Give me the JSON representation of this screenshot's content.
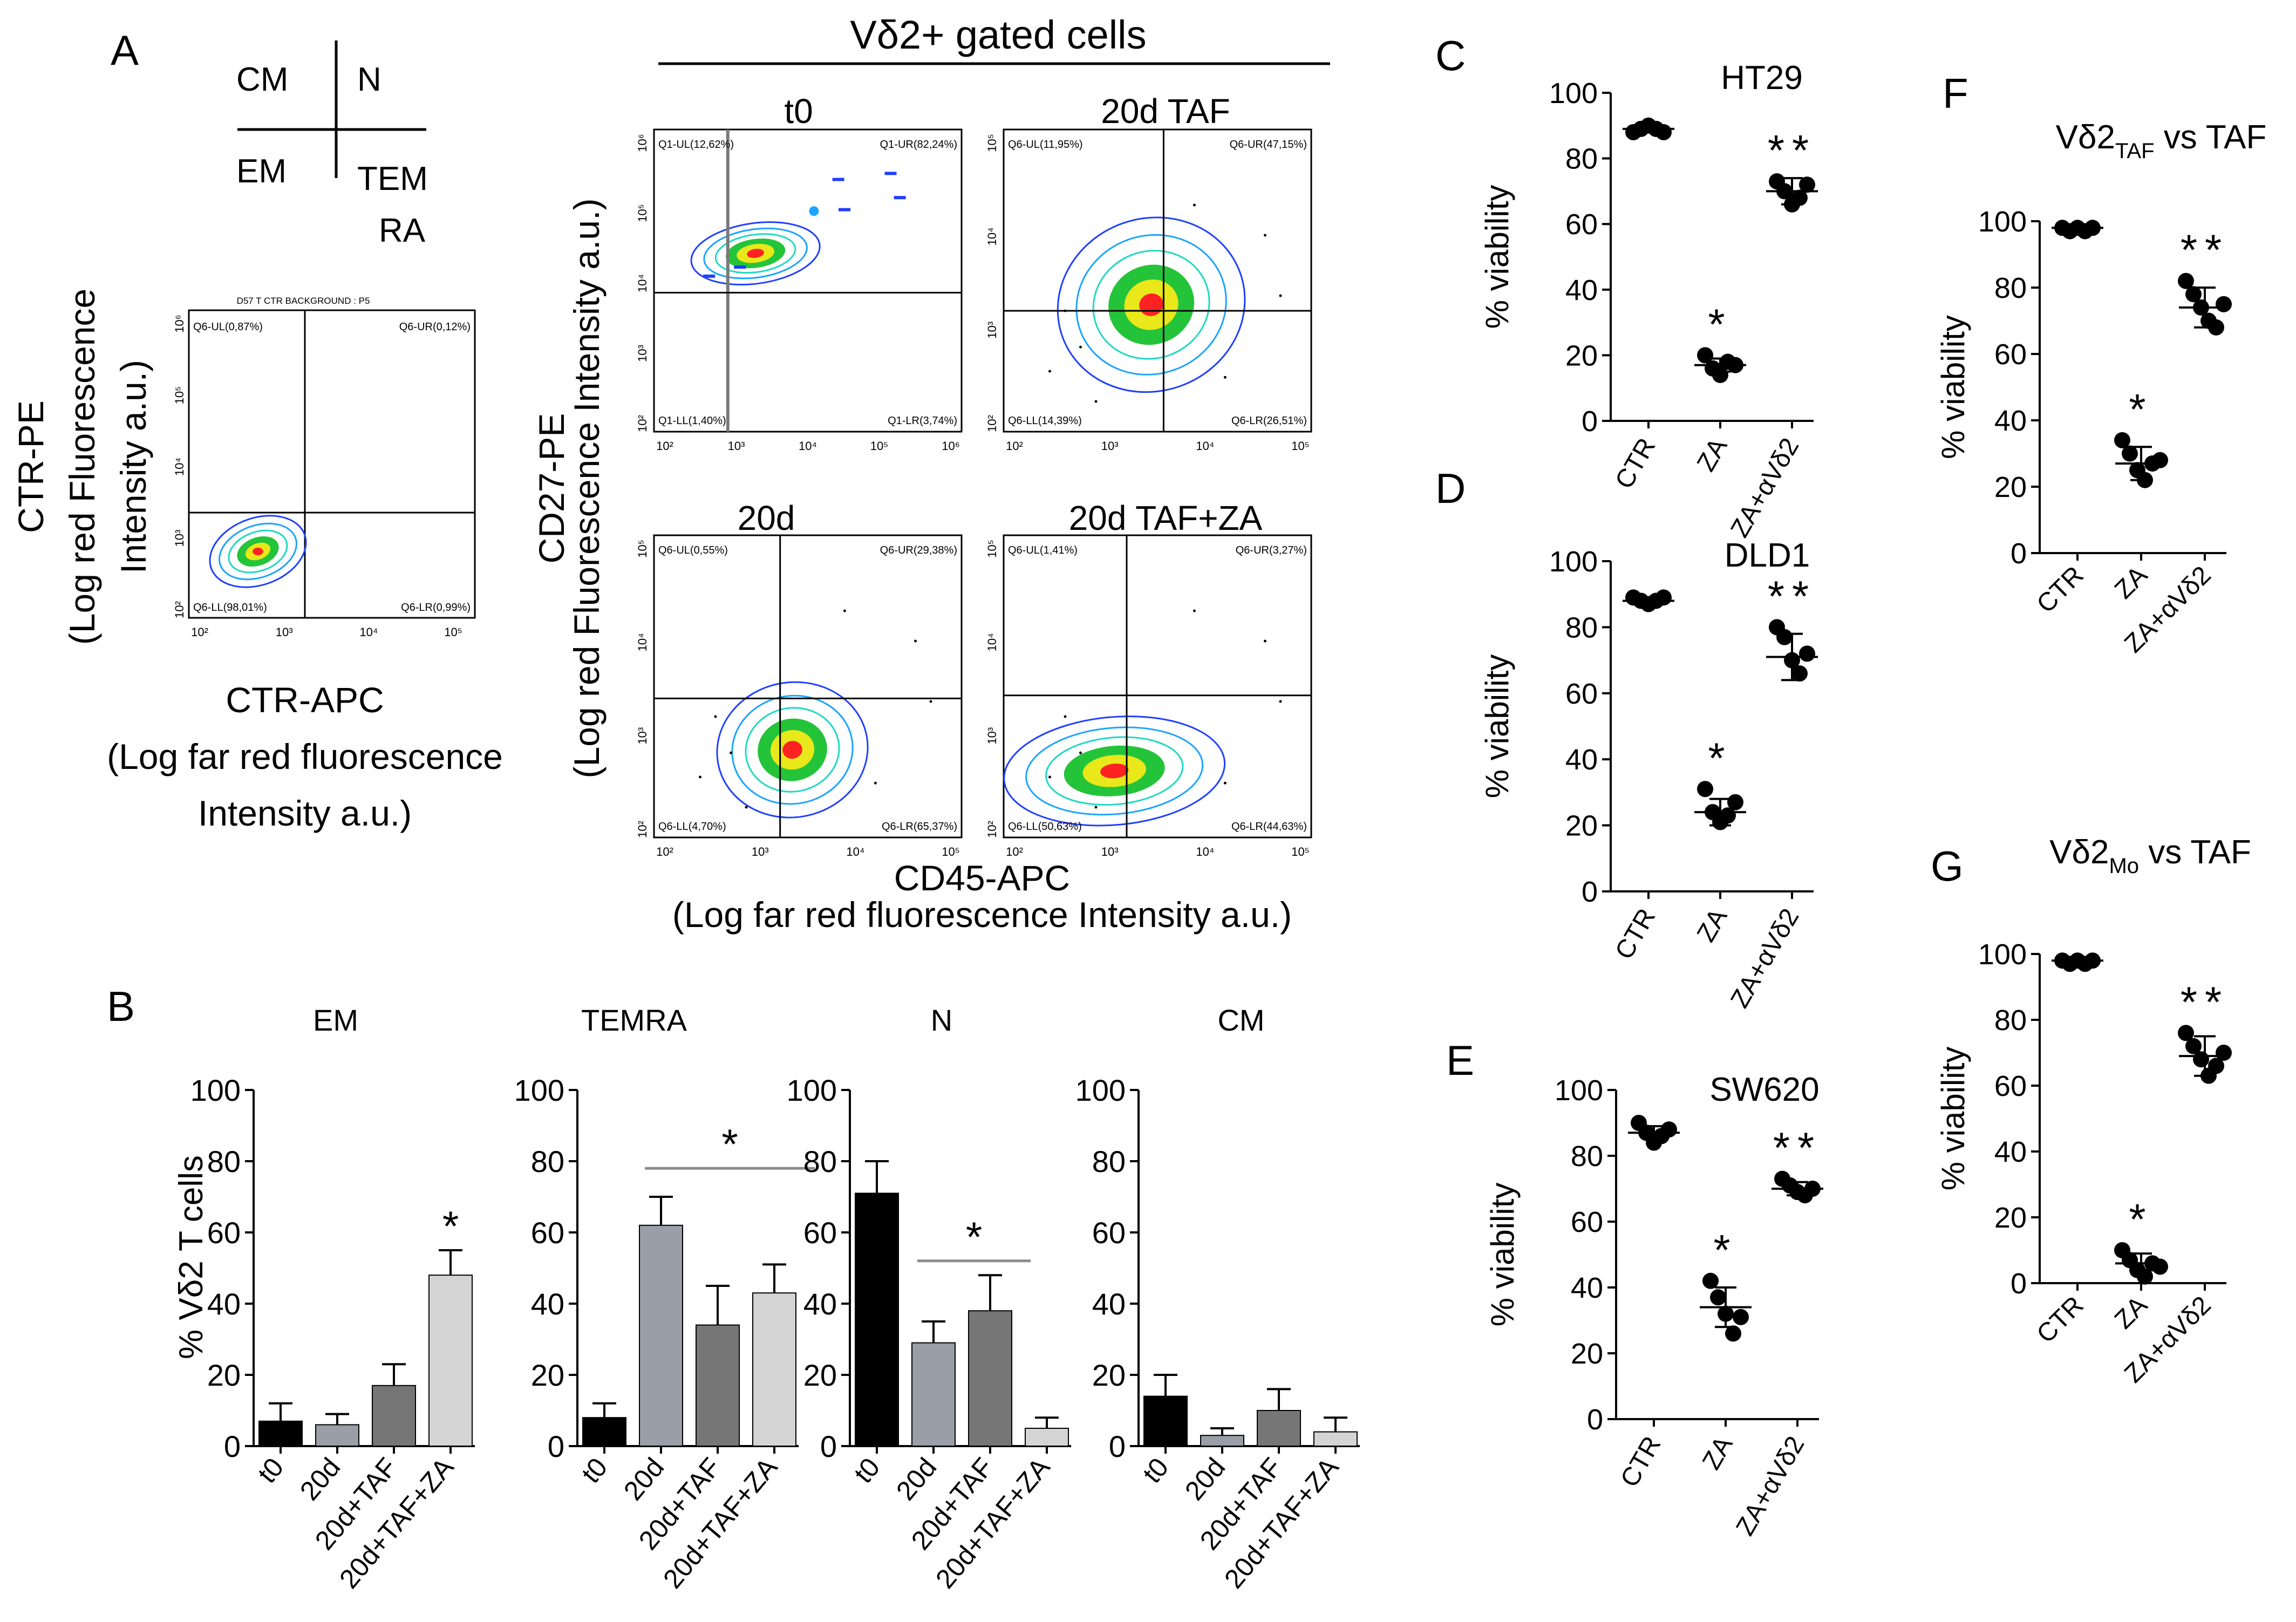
{
  "colors": {
    "ink": "#000000",
    "bar_black": "#000000",
    "bar_light": "#9a9ea6",
    "bar_dark": "#767676",
    "bar_pale": "#d4d4d4",
    "sig_line": "#8c8c8c",
    "contour": [
      "#1f3fff",
      "#1aa3ff",
      "#1fd9c2",
      "#24c43a",
      "#e8e81a",
      "#ff2222"
    ]
  },
  "panel_labels": {
    "A": "A",
    "B": "B",
    "C": "C",
    "D": "D",
    "E": "E",
    "F": "F",
    "G": "G"
  },
  "legend_quad": {
    "ul": "CM",
    "ur": "N",
    "ll": "EM",
    "lr": "TEM",
    "lr2": "RA"
  },
  "panelA": {
    "gated_title": "Vδ2+ gated cells",
    "ctr_plot": {
      "title": "D57 T CTR BACKGROUND : P5",
      "q_ul": "Q6-UL(0,87%)",
      "q_ur": "Q6-UR(0,12%)",
      "q_ll": "Q6-LL(98,01%)",
      "q_lr": "Q6-LR(0,99%)",
      "xticks": [
        "10²",
        "10³",
        "10⁴",
        "10⁵"
      ],
      "yticks": [
        "10²",
        "10³",
        "10⁴",
        "10⁵",
        "10⁶"
      ]
    },
    "ctr_ylabel": [
      "CTR-PE",
      "(Log red Fluorescence",
      "Intensity a.u.)"
    ],
    "ctr_xlabel": [
      "CTR-APC",
      "(Log far red fluorescence",
      "Intensity a.u.)"
    ],
    "plots": [
      {
        "title": "t0",
        "q_ul": "Q1-UL(12,62%)",
        "q_ur": "Q1-UR(82,24%)",
        "q_ll": "Q1-LL(1,40%)",
        "q_lr": "Q1-LR(3,74%)",
        "xticks": [
          "10²",
          "10³",
          "10⁴",
          "10⁵",
          "10⁶"
        ],
        "yticks": [
          "10²",
          "10³",
          "10⁴",
          "10⁵",
          "10⁶"
        ]
      },
      {
        "title": "20d TAF",
        "q_ul": "Q6-UL(11,95%)",
        "q_ur": "Q6-UR(47,15%)",
        "q_ll": "Q6-LL(14,39%)",
        "q_lr": "Q6-LR(26,51%)",
        "xticks": [
          "10²",
          "10³",
          "10⁴",
          "10⁵"
        ],
        "yticks": [
          "10²",
          "10³",
          "10⁴",
          "10⁵"
        ]
      },
      {
        "title": "20d",
        "q_ul": "Q6-UL(0,55%)",
        "q_ur": "Q6-UR(29,38%)",
        "q_ll": "Q6-LL(4,70%)",
        "q_lr": "Q6-LR(65,37%)",
        "xticks": [
          "10²",
          "10³",
          "10⁴",
          "10⁵"
        ],
        "yticks": [
          "10²",
          "10³",
          "10⁴",
          "10⁵"
        ]
      },
      {
        "title": "20d TAF+ZA",
        "q_ul": "Q6-UL(1,41%)",
        "q_ur": "Q6-UR(3,27%)",
        "q_ll": "Q6-LL(50,63%)",
        "q_lr": "Q6-LR(44,63%)",
        "xticks": [
          "10²",
          "10³",
          "10⁴",
          "10⁵"
        ],
        "yticks": [
          "10²",
          "10³",
          "10⁴",
          "10⁵"
        ]
      }
    ],
    "grid_ylabel": [
      "CD27-PE",
      "(Log red Fluorescence Intensity a.u.)"
    ],
    "grid_xlabel": [
      "CD45-APC",
      "(Log far red fluorescence Intensity a.u.)"
    ]
  },
  "chart_data": [
    {
      "type": "bar",
      "panel": "B",
      "title": "EM",
      "categories": [
        "t0",
        "20d",
        "20d+TAF",
        "20d+TAF+ZA"
      ],
      "values": [
        7,
        6,
        17,
        48
      ],
      "errors": [
        5,
        3,
        6,
        7
      ],
      "ylabel": "% Vδ2 T cells",
      "ylim": [
        0,
        100
      ],
      "yticks": [
        0,
        20,
        40,
        60,
        80,
        100
      ],
      "significance": [
        {
          "text": "*",
          "type": "bar",
          "index": 3
        }
      ]
    },
    {
      "type": "bar",
      "panel": "B",
      "title": "TEMRA",
      "categories": [
        "t0",
        "20d",
        "20d+TAF",
        "20d+TAF+ZA"
      ],
      "values": [
        8,
        62,
        34,
        43
      ],
      "errors": [
        4,
        8,
        11,
        8
      ],
      "ylabel": "",
      "ylim": [
        0,
        100
      ],
      "yticks": [
        0,
        20,
        40,
        60,
        80,
        100
      ],
      "significance": [
        {
          "text": "*",
          "type": "line",
          "from": 1,
          "to": 4,
          "y": 78
        }
      ]
    },
    {
      "type": "bar",
      "panel": "B",
      "title": "N",
      "categories": [
        "t0",
        "20d",
        "20d+TAF",
        "20d+TAF+ZA"
      ],
      "values": [
        71,
        29,
        38,
        5
      ],
      "errors": [
        9,
        6,
        10,
        3
      ],
      "ylabel": "",
      "ylim": [
        0,
        100
      ],
      "yticks": [
        0,
        20,
        40,
        60,
        80,
        100
      ],
      "significance": [
        {
          "text": "*",
          "type": "line",
          "from": 1,
          "to": 3,
          "y": 52
        }
      ]
    },
    {
      "type": "bar",
      "panel": "B",
      "title": "CM",
      "categories": [
        "t0",
        "20d",
        "20d+TAF",
        "20d+TAF+ZA"
      ],
      "values": [
        14,
        3,
        10,
        4
      ],
      "errors": [
        6,
        2,
        6,
        4
      ],
      "ylabel": "",
      "ylim": [
        0,
        100
      ],
      "yticks": [
        0,
        20,
        40,
        60,
        80,
        100
      ],
      "significance": []
    },
    {
      "type": "scatter",
      "panel": "C",
      "title": "HT29",
      "categories": [
        "CTR",
        "ZA",
        "ZA+αVδ2"
      ],
      "points": [
        [
          88,
          89,
          90,
          89,
          88
        ],
        [
          20,
          16,
          14,
          18,
          17
        ],
        [
          73,
          70,
          66,
          68,
          72
        ]
      ],
      "means": [
        89,
        17,
        70
      ],
      "sd": [
        1,
        2,
        4
      ],
      "ylabel": "% viability",
      "ylim": [
        0,
        100
      ],
      "yticks": [
        0,
        20,
        40,
        60,
        80,
        100
      ],
      "stars": [
        "",
        "*",
        "**"
      ]
    },
    {
      "type": "scatter",
      "panel": "D",
      "title": "DLD1",
      "categories": [
        "CTR",
        "ZA",
        "ZA+αVδ2"
      ],
      "points": [
        [
          89,
          88,
          87,
          88,
          89
        ],
        [
          31,
          24,
          21,
          23,
          27
        ],
        [
          80,
          77,
          70,
          66,
          72
        ]
      ],
      "means": [
        88,
        24,
        71
      ],
      "sd": [
        1,
        4,
        7
      ],
      "ylabel": "% viability",
      "ylim": [
        0,
        100
      ],
      "yticks": [
        0,
        20,
        40,
        60,
        80,
        100
      ],
      "stars": [
        "",
        "*",
        "**"
      ]
    },
    {
      "type": "scatter",
      "panel": "E",
      "title": "SW620",
      "categories": [
        "CTR",
        "ZA",
        "ZA+αVδ2"
      ],
      "points": [
        [
          90,
          87,
          84,
          86,
          88
        ],
        [
          42,
          37,
          32,
          26,
          31
        ],
        [
          73,
          71,
          69,
          68,
          70
        ]
      ],
      "means": [
        87,
        34,
        70
      ],
      "sd": [
        2,
        6,
        2
      ],
      "ylabel": "% viability",
      "ylim": [
        0,
        100
      ],
      "yticks": [
        0,
        20,
        40,
        60,
        80,
        100
      ],
      "stars": [
        "",
        "*",
        "**"
      ]
    },
    {
      "type": "scatter",
      "panel": "F",
      "title": "Vδ2",
      "title_sub": "TAF",
      "title_suffix": " vs TAF",
      "categories": [
        "CTR",
        "ZA",
        "ZA+αVδ2"
      ],
      "points": [
        [
          98,
          97,
          98,
          97,
          98
        ],
        [
          34,
          30,
          25,
          22,
          27,
          28
        ],
        [
          82,
          78,
          74,
          70,
          68,
          75
        ]
      ],
      "means": [
        98,
        27,
        74
      ],
      "sd": [
        1,
        5,
        6
      ],
      "ylabel": "% viability",
      "ylim": [
        0,
        100
      ],
      "yticks": [
        0,
        20,
        40,
        60,
        80,
        100
      ],
      "stars": [
        "",
        "*",
        "**"
      ]
    },
    {
      "type": "scatter",
      "panel": "G",
      "title": "Vδ2",
      "title_sub": "Mo",
      "title_suffix": " vs TAF",
      "categories": [
        "CTR",
        "ZA",
        "ZA+αVδ2"
      ],
      "points": [
        [
          98,
          97,
          98,
          97,
          98
        ],
        [
          10,
          7,
          4,
          2,
          6,
          5
        ],
        [
          76,
          72,
          68,
          63,
          66,
          70
        ]
      ],
      "means": [
        98,
        6,
        69
      ],
      "sd": [
        1,
        3,
        6
      ],
      "ylabel": "% viability",
      "ylim": [
        0,
        100
      ],
      "yticks": [
        0,
        20,
        40,
        60,
        80,
        100
      ],
      "stars": [
        "",
        "*",
        "**"
      ]
    }
  ]
}
